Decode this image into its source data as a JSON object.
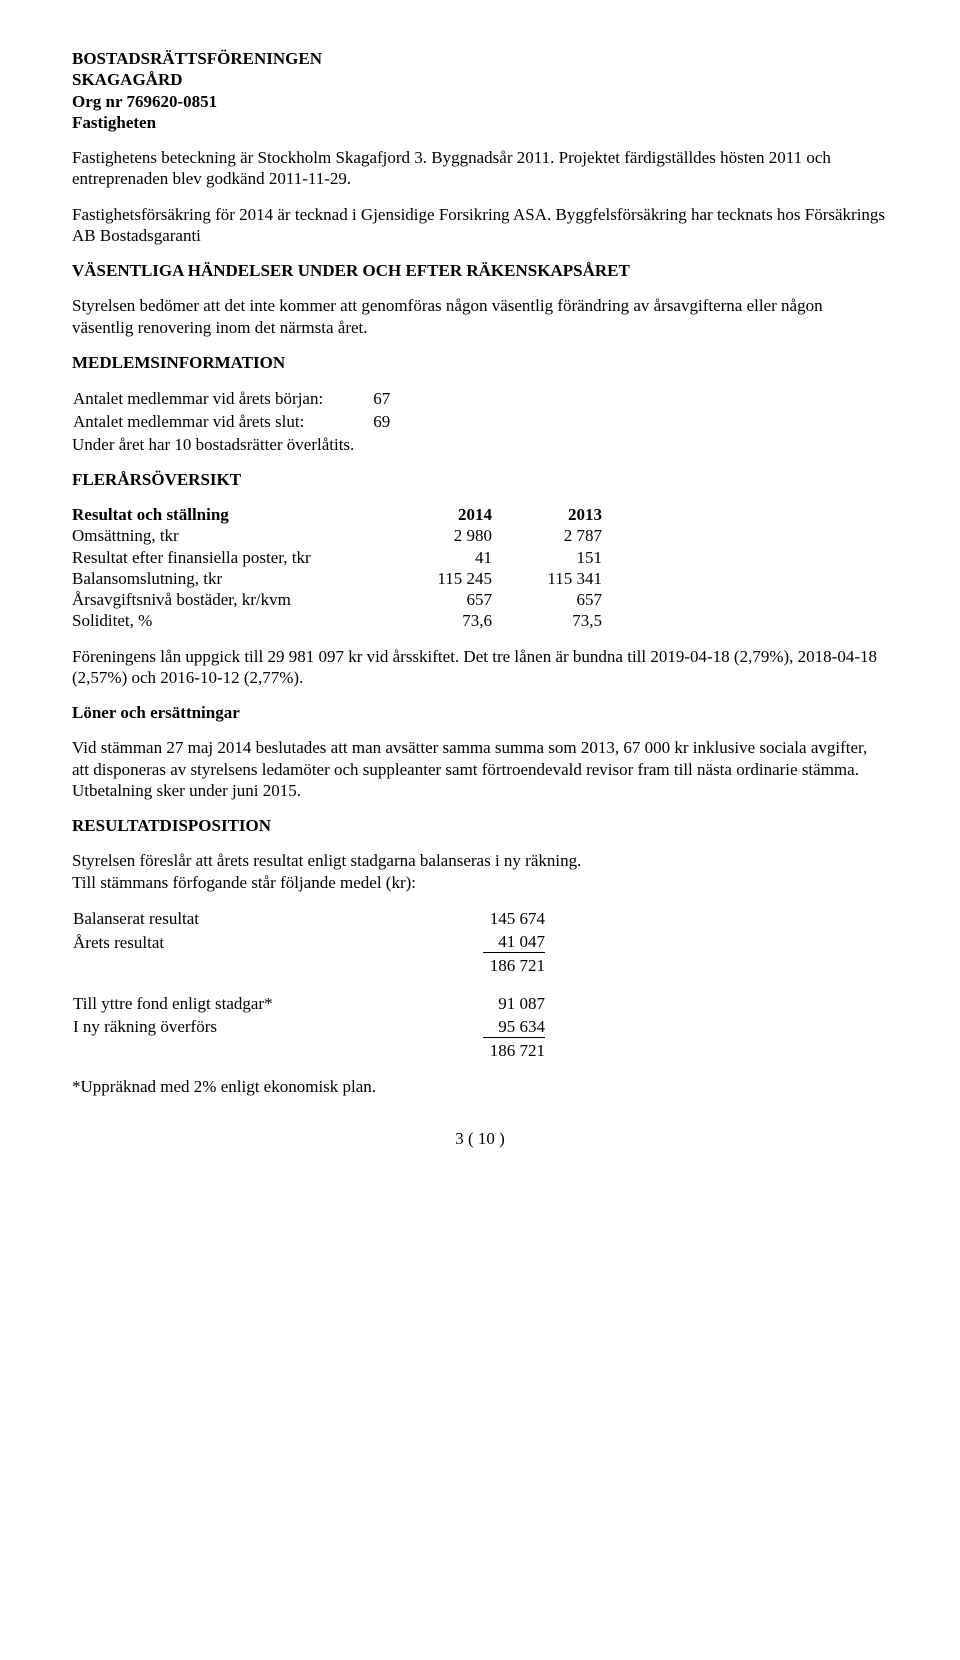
{
  "header": {
    "line1": "BOSTADSRÄTTSFÖRENINGEN",
    "line2": "SKAGAGÅRD",
    "line3": "Org nr 769620-0851",
    "line4": "Fastigheten"
  },
  "para1": "Fastighetens beteckning är Stockholm Skagafjord 3. Byggnadsår 2011. Projektet färdigställdes hösten 2011 och entreprenaden blev godkänd 2011-11-29.",
  "para2": "Fastighetsförsäkring för 2014 är tecknad i Gjensidige Forsikring ASA. Byggfelsförsäkring har tecknats hos Försäkrings AB Bostadsgaranti",
  "vasentliga_title": "VÄSENTLIGA HÄNDELSER UNDER OCH EFTER RÄKENSKAPSÅRET",
  "vasentliga_body": "Styrelsen bedömer att det inte kommer att genomföras någon väsentlig förändring av årsavgifterna eller någon väsentlig renovering inom det närmsta året.",
  "medlems_title": "MEDLEMSINFORMATION",
  "medlems": {
    "row1_label": "Antalet medlemmar vid årets början:",
    "row1_val": "67",
    "row2_label": "Antalet medlemmar vid årets slut:",
    "row2_val": "69",
    "row3": "Under året har 10 bostadsrätter överlåtits."
  },
  "fler_title": "FLERÅRSÖVERSIKT",
  "fler": {
    "head_label": "Resultat och ställning",
    "head_c1": "2014",
    "head_c2": "2013",
    "rows": [
      {
        "label": "Omsättning, tkr",
        "c1": "2 980",
        "c2": "2 787"
      },
      {
        "label": "Resultat efter finansiella poster, tkr",
        "c1": "41",
        "c2": "151"
      },
      {
        "label": "Balansomslutning, tkr",
        "c1": "115 245",
        "c2": "115 341"
      },
      {
        "label": "Årsavgiftsnivå bostäder, kr/kvm",
        "c1": "657",
        "c2": "657"
      },
      {
        "label": "Soliditet, %",
        "c1": "73,6",
        "c2": "73,5"
      }
    ]
  },
  "loan_para": "Föreningens lån uppgick till 29 981 097 kr vid årsskiftet. Det tre lånen är bundna till 2019-04-18 (2,79%), 2018-04-18 (2,57%) och 2016-10-12 (2,77%).",
  "loner_title": "Löner och ersättningar",
  "loner_body": "Vid stämman 27 maj 2014 beslutades att man avsätter samma summa som 2013, 67 000 kr inklusive sociala avgifter, att disponeras av styrelsens ledamöter och suppleanter samt förtroendevald revisor fram till nästa ordinarie stämma. Utbetalning sker under juni 2015.",
  "resdisp_title": "RESULTATDISPOSITION",
  "resdisp_intro1": "Styrelsen föreslår att årets resultat enligt stadgarna balanseras i ny räkning.",
  "resdisp_intro2": "Till stämmans förfogande står följande medel (kr):",
  "disp1": {
    "r1_label": "Balanserat resultat",
    "r1_val": "145 674",
    "r2_label": "Årets resultat",
    "r2_val": "41 047",
    "sum": "186 721"
  },
  "disp2": {
    "r1_label": "Till yttre fond enligt stadgar*",
    "r1_val": "91 087",
    "r2_label": "I ny räkning överförs",
    "r2_val": "95 634",
    "sum": "186 721"
  },
  "footnote": "*Uppräknad med 2% enligt ekonomisk plan.",
  "pagenum": "3 ( 10 )"
}
